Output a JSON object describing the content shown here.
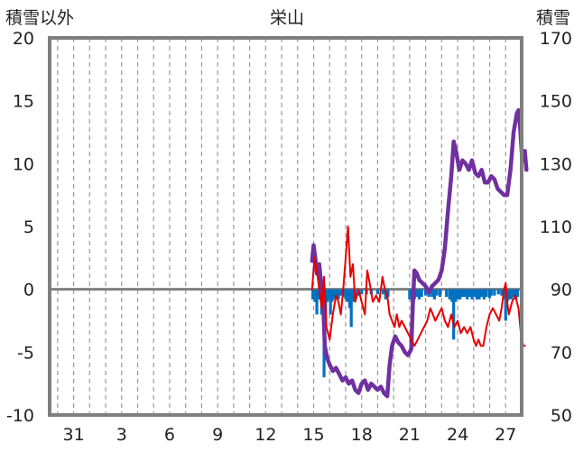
{
  "chart_data": {
    "type": "line",
    "title": "栄山",
    "left_axis_label": "積雪以外",
    "right_axis_label": "積雪",
    "left_ylim": [
      -10,
      20
    ],
    "left_yticks": [
      -10,
      -5,
      0,
      5,
      10,
      15,
      20
    ],
    "right_ylim": [
      50,
      170
    ],
    "right_yticks": [
      50,
      70,
      90,
      110,
      130,
      150,
      170
    ],
    "xlim": [
      29.5,
      59
    ],
    "xticks": [
      {
        "x": 31,
        "label": "31"
      },
      {
        "x": 34,
        "label": "3"
      },
      {
        "x": 37,
        "label": "6"
      },
      {
        "x": 40,
        "label": "9"
      },
      {
        "x": 43,
        "label": "12"
      },
      {
        "x": 46,
        "label": "15"
      },
      {
        "x": 49,
        "label": "18"
      },
      {
        "x": 52,
        "label": "21"
      },
      {
        "x": 55,
        "label": "24"
      },
      {
        "x": 58,
        "label": "27"
      }
    ],
    "grid": "vertical dashed",
    "series": [
      {
        "color": "#7030a0",
        "axis": "right",
        "points": [
          [
            45.9,
            99
          ],
          [
            46.0,
            104
          ],
          [
            46.1,
            100
          ],
          [
            46.2,
            95
          ],
          [
            46.35,
            98
          ],
          [
            46.5,
            90
          ],
          [
            46.6,
            85
          ],
          [
            46.7,
            72
          ],
          [
            46.85,
            68
          ],
          [
            47.0,
            66
          ],
          [
            47.2,
            64
          ],
          [
            47.4,
            65
          ],
          [
            47.6,
            63
          ],
          [
            47.8,
            61
          ],
          [
            48.0,
            62
          ],
          [
            48.2,
            60
          ],
          [
            48.4,
            61
          ],
          [
            48.6,
            58
          ],
          [
            48.8,
            57
          ],
          [
            49.0,
            60
          ],
          [
            49.2,
            61
          ],
          [
            49.4,
            58
          ],
          [
            49.6,
            60
          ],
          [
            49.8,
            59
          ],
          [
            50.0,
            58
          ],
          [
            50.2,
            59
          ],
          [
            50.4,
            57
          ],
          [
            50.6,
            56
          ],
          [
            50.75,
            66
          ],
          [
            50.9,
            72
          ],
          [
            51.1,
            75
          ],
          [
            51.3,
            73
          ],
          [
            51.5,
            72
          ],
          [
            51.7,
            70
          ],
          [
            51.9,
            69
          ],
          [
            52.1,
            71
          ],
          [
            52.2,
            85
          ],
          [
            52.3,
            96
          ],
          [
            52.45,
            95
          ],
          [
            52.6,
            93
          ],
          [
            52.8,
            92
          ],
          [
            53.0,
            91
          ],
          [
            53.2,
            89
          ],
          [
            53.4,
            91
          ],
          [
            53.6,
            92
          ],
          [
            53.8,
            93
          ],
          [
            54.0,
            96
          ],
          [
            54.2,
            103
          ],
          [
            54.4,
            115
          ],
          [
            54.6,
            126
          ],
          [
            54.75,
            137
          ],
          [
            54.9,
            134
          ],
          [
            55.1,
            128
          ],
          [
            55.3,
            131
          ],
          [
            55.5,
            130
          ],
          [
            55.7,
            128
          ],
          [
            55.9,
            131
          ],
          [
            56.1,
            127
          ],
          [
            56.3,
            126
          ],
          [
            56.5,
            128
          ],
          [
            56.7,
            124
          ],
          [
            56.9,
            124
          ],
          [
            57.1,
            126
          ],
          [
            57.3,
            125
          ],
          [
            57.5,
            122
          ],
          [
            57.7,
            121
          ],
          [
            57.9,
            120
          ],
          [
            58.1,
            120
          ],
          [
            58.3,
            128
          ],
          [
            58.5,
            140
          ],
          [
            58.7,
            146
          ],
          [
            58.8,
            147
          ],
          [
            58.9,
            142
          ],
          [
            59.0,
            134
          ],
          [
            59.1,
            131
          ],
          [
            59.2,
            134
          ],
          [
            59.3,
            128
          ]
        ]
      },
      {
        "color": "#e60000",
        "axis": "left",
        "points": [
          [
            45.9,
            0
          ],
          [
            46.05,
            2.5
          ],
          [
            46.2,
            1.5
          ],
          [
            46.35,
            0
          ],
          [
            46.5,
            -1.5
          ],
          [
            46.65,
            1
          ],
          [
            46.8,
            -3
          ],
          [
            47.0,
            -4
          ],
          [
            47.2,
            -2
          ],
          [
            47.4,
            -0.5
          ],
          [
            47.55,
            -1
          ],
          [
            47.7,
            -2
          ],
          [
            47.85,
            0
          ],
          [
            48.0,
            2.5
          ],
          [
            48.15,
            5
          ],
          [
            48.3,
            1
          ],
          [
            48.45,
            2
          ],
          [
            48.6,
            -1
          ],
          [
            48.8,
            0
          ],
          [
            49.0,
            -1
          ],
          [
            49.2,
            -2
          ],
          [
            49.35,
            1.5
          ],
          [
            49.5,
            0.5
          ],
          [
            49.7,
            -1
          ],
          [
            49.9,
            -0.5
          ],
          [
            50.1,
            -1
          ],
          [
            50.3,
            1
          ],
          [
            50.45,
            0
          ],
          [
            50.6,
            -0.5
          ],
          [
            50.75,
            -2
          ],
          [
            50.9,
            -2.5
          ],
          [
            51.05,
            -3
          ],
          [
            51.2,
            -2
          ],
          [
            51.35,
            -3
          ],
          [
            51.5,
            -2.5
          ],
          [
            51.7,
            -3
          ],
          [
            51.9,
            -3.5
          ],
          [
            52.1,
            -4
          ],
          [
            52.3,
            -4.5
          ],
          [
            52.5,
            -4
          ],
          [
            52.7,
            -3.5
          ],
          [
            52.9,
            -3
          ],
          [
            53.1,
            -2.5
          ],
          [
            53.3,
            -1.5
          ],
          [
            53.45,
            -2
          ],
          [
            53.6,
            -2.5
          ],
          [
            53.8,
            -2
          ],
          [
            54.0,
            -1.5
          ],
          [
            54.2,
            -2.5
          ],
          [
            54.4,
            -3
          ],
          [
            54.6,
            -2
          ],
          [
            54.8,
            -3
          ],
          [
            55.0,
            -2.5
          ],
          [
            55.2,
            -3.5
          ],
          [
            55.4,
            -3
          ],
          [
            55.6,
            -3.5
          ],
          [
            55.8,
            -3
          ],
          [
            56.0,
            -4
          ],
          [
            56.15,
            -4.5
          ],
          [
            56.3,
            -4
          ],
          [
            56.45,
            -4.5
          ],
          [
            56.6,
            -4.5
          ],
          [
            56.8,
            -3
          ],
          [
            57.0,
            -2
          ],
          [
            57.2,
            -1.5
          ],
          [
            57.4,
            -2
          ],
          [
            57.6,
            -2.5
          ],
          [
            57.75,
            -1.5
          ],
          [
            57.9,
            0
          ],
          [
            58.0,
            0.5
          ],
          [
            58.1,
            -1
          ],
          [
            58.2,
            -2
          ],
          [
            58.4,
            -1
          ],
          [
            58.6,
            -0.5
          ],
          [
            58.8,
            -1.5
          ],
          [
            58.95,
            -3.5
          ],
          [
            59.1,
            -4.5
          ],
          [
            59.2,
            -4.5
          ]
        ]
      },
      {
        "color": "#0070c0",
        "axis": "left",
        "type": "bar",
        "points": [
          [
            45.95,
            -0.8
          ],
          [
            46.1,
            -1.0
          ],
          [
            46.2,
            -2.0
          ],
          [
            46.35,
            -0.8
          ],
          [
            46.5,
            -2.0
          ],
          [
            46.6,
            -0.7
          ],
          [
            46.65,
            -7.0
          ],
          [
            46.75,
            -3.0
          ],
          [
            46.85,
            -1.0
          ],
          [
            46.95,
            -0.8
          ],
          [
            47.05,
            -2.0
          ],
          [
            47.15,
            -1.0
          ],
          [
            47.3,
            -0.8
          ],
          [
            47.45,
            -0.6
          ],
          [
            47.55,
            -0.8
          ],
          [
            47.7,
            -0.5
          ],
          [
            47.85,
            -0.6
          ],
          [
            48.0,
            -0.8
          ],
          [
            48.1,
            -1.0
          ],
          [
            48.25,
            -1.5
          ],
          [
            48.35,
            -3.0
          ],
          [
            48.45,
            -1.0
          ],
          [
            48.6,
            -0.6
          ],
          [
            48.8,
            -0.5
          ],
          [
            49.0,
            -0.4
          ],
          [
            49.3,
            -0.4
          ],
          [
            49.6,
            -0.4
          ],
          [
            50.0,
            -0.4
          ],
          [
            50.35,
            -0.4
          ],
          [
            50.5,
            -0.8
          ],
          [
            50.65,
            -0.6
          ],
          [
            52.0,
            -0.8
          ],
          [
            52.15,
            -1.0
          ],
          [
            52.3,
            -0.8
          ],
          [
            52.45,
            -0.6
          ],
          [
            52.6,
            -0.8
          ],
          [
            52.75,
            -0.6
          ],
          [
            53.0,
            -0.5
          ],
          [
            53.2,
            -0.6
          ],
          [
            53.4,
            -0.6
          ],
          [
            53.55,
            -0.8
          ],
          [
            53.7,
            -0.5
          ],
          [
            53.9,
            -0.6
          ],
          [
            54.3,
            -0.6
          ],
          [
            54.5,
            -0.8
          ],
          [
            54.65,
            -1.0
          ],
          [
            54.75,
            -4.0
          ],
          [
            54.85,
            -1.0
          ],
          [
            55.0,
            -0.8
          ],
          [
            55.15,
            -0.8
          ],
          [
            55.3,
            -0.6
          ],
          [
            55.45,
            -0.6
          ],
          [
            55.6,
            -0.8
          ],
          [
            55.75,
            -0.6
          ],
          [
            55.9,
            -0.8
          ],
          [
            56.05,
            -0.6
          ],
          [
            56.2,
            -0.8
          ],
          [
            56.35,
            -0.8
          ],
          [
            56.5,
            -0.6
          ],
          [
            56.65,
            -0.8
          ],
          [
            56.8,
            -0.6
          ],
          [
            57.0,
            -0.7
          ],
          [
            57.1,
            -0.5
          ],
          [
            57.3,
            -0.5
          ],
          [
            57.55,
            -0.4
          ],
          [
            57.75,
            -0.5
          ],
          [
            57.9,
            -0.8
          ],
          [
            58.0,
            -2.5
          ],
          [
            58.1,
            -1.0
          ],
          [
            58.2,
            -0.8
          ],
          [
            58.35,
            -0.8
          ],
          [
            58.5,
            -0.6
          ],
          [
            58.65,
            -0.8
          ],
          [
            58.75,
            -0.6
          ]
        ]
      }
    ]
  }
}
